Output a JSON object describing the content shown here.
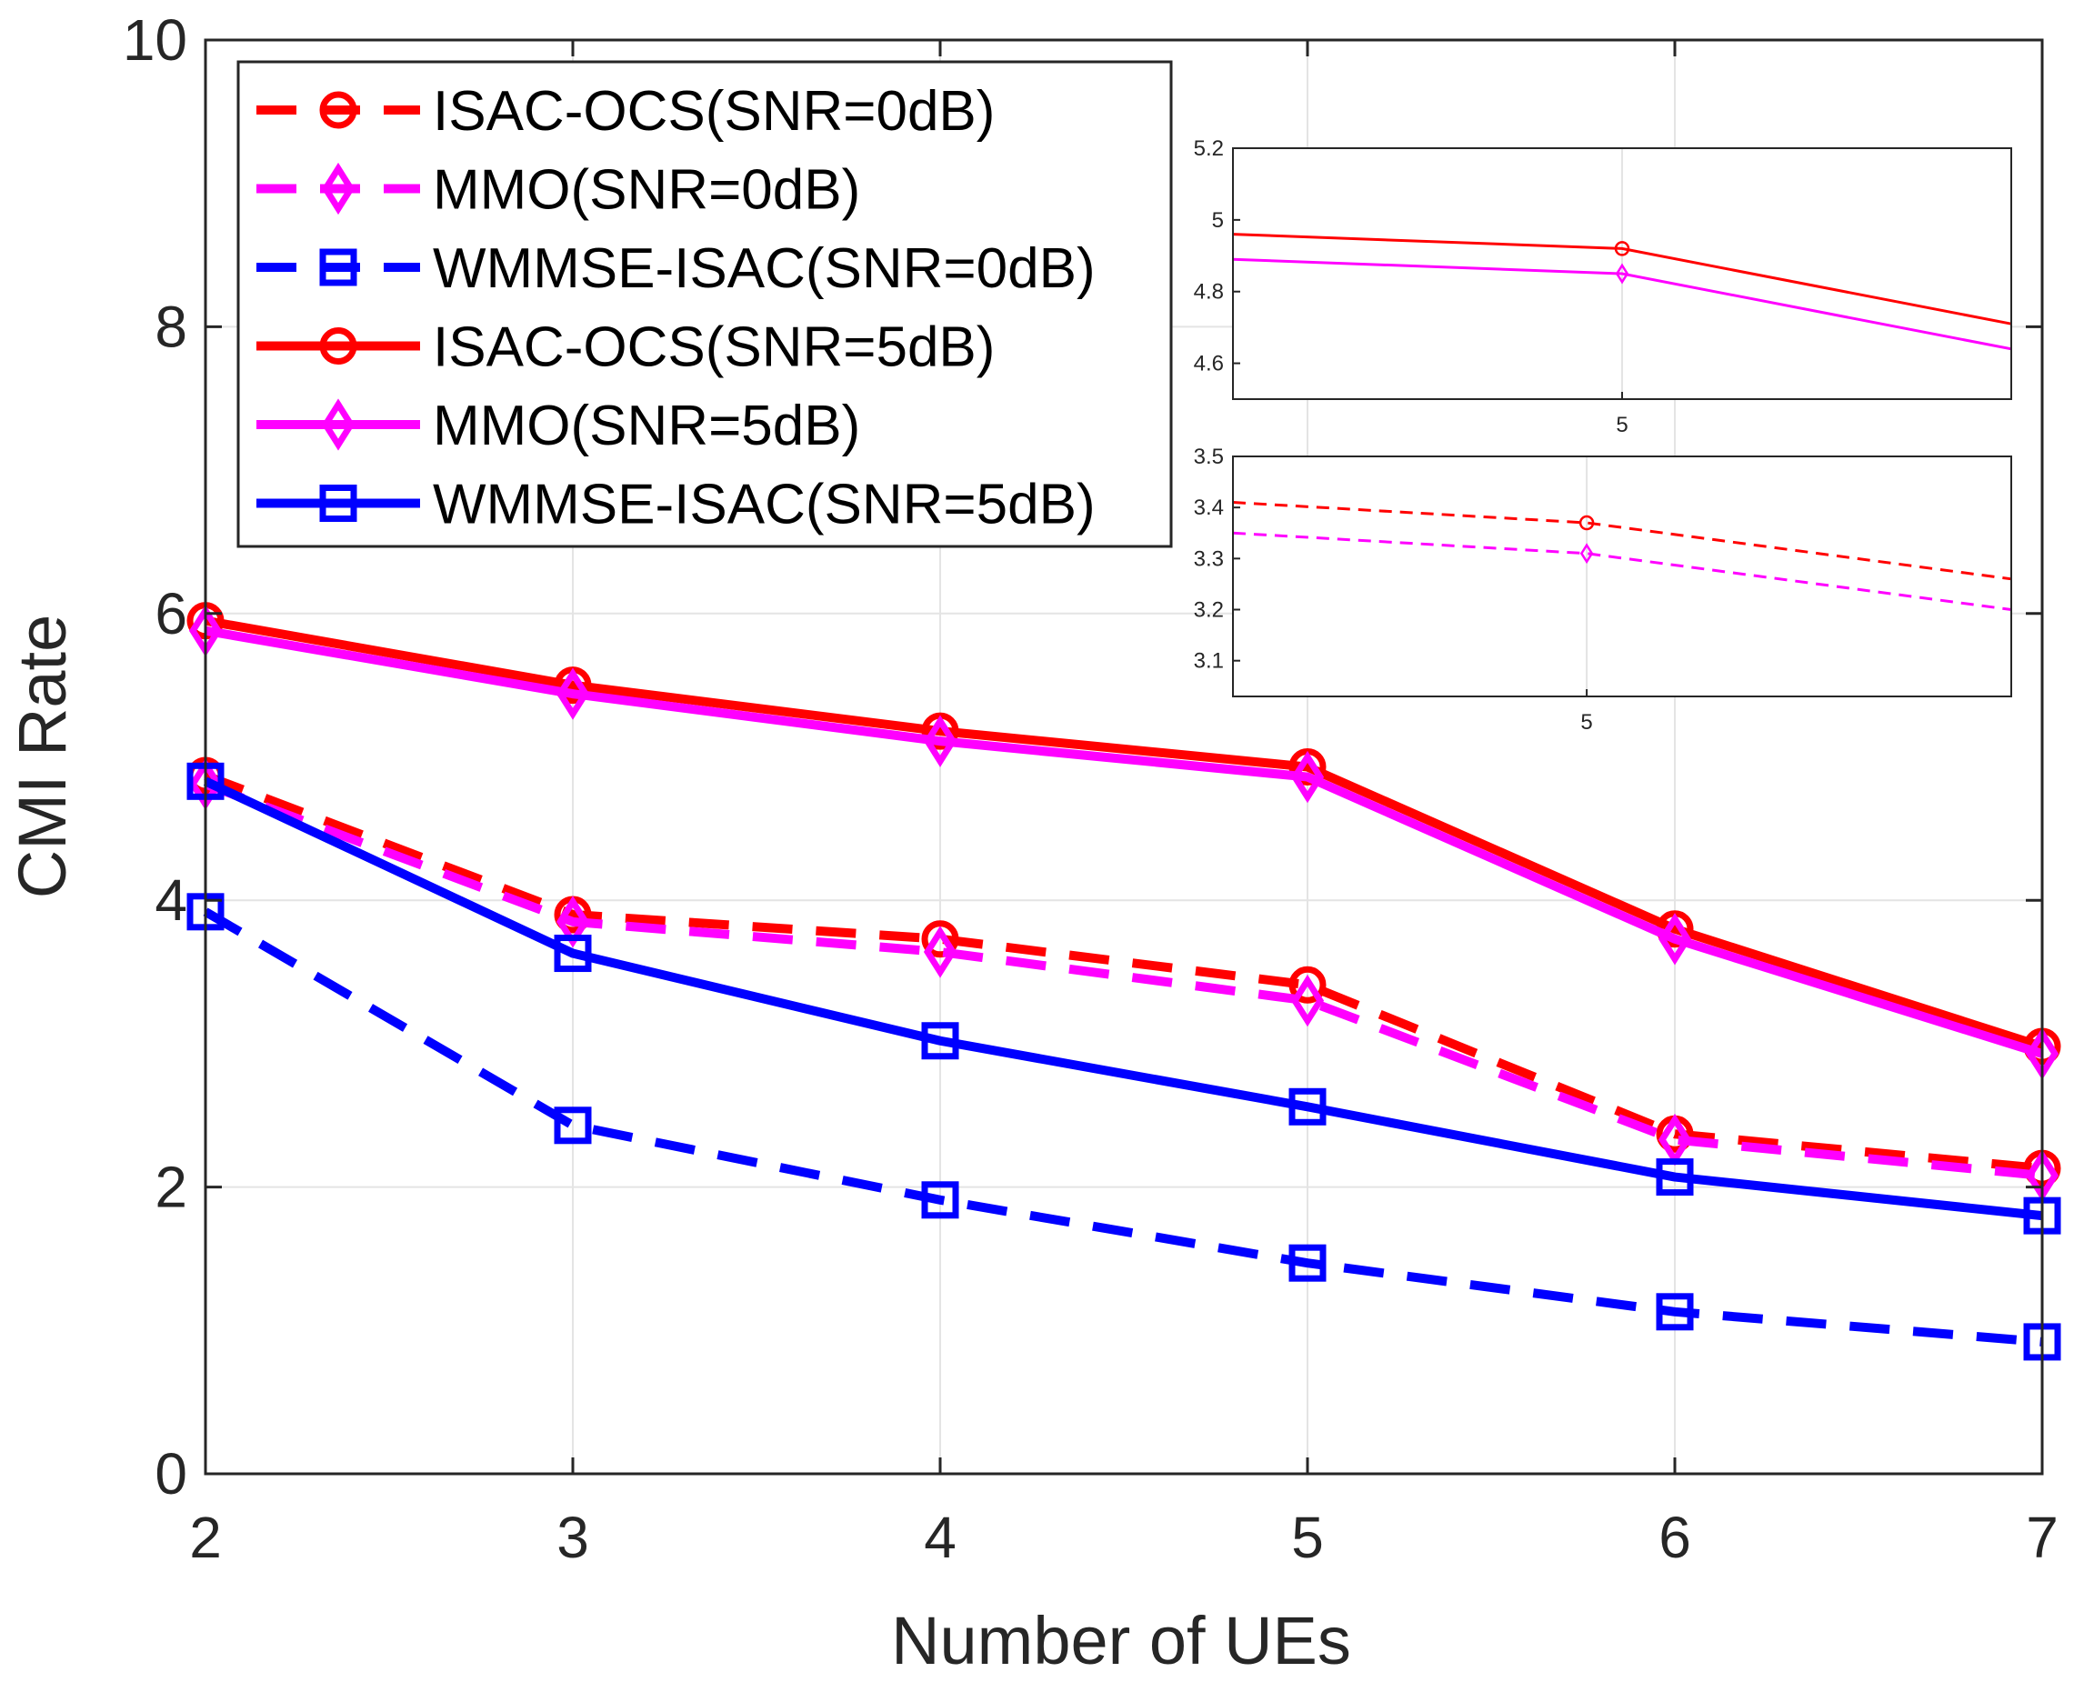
{
  "chart_data": {
    "type": "line",
    "xlabel": "Number of UEs",
    "ylabel": "CMI Rate",
    "xlim": [
      2,
      7
    ],
    "ylim": [
      0,
      10
    ],
    "xticks": [
      2,
      3,
      4,
      5,
      6,
      7
    ],
    "yticks": [
      0,
      2,
      4,
      6,
      8,
      10
    ],
    "grid": true,
    "legend_position": "top-left",
    "x": [
      2,
      3,
      4,
      5,
      6,
      7
    ],
    "series": [
      {
        "name": "ISAC-OCS(SNR=0dB)",
        "values": [
          4.87,
          3.9,
          3.73,
          3.41,
          2.37,
          2.13
        ],
        "color": "#ff0000",
        "linestyle": "dashed",
        "marker": "circle"
      },
      {
        "name": "MMO(SNR=0dB)",
        "values": [
          4.81,
          3.85,
          3.64,
          3.3,
          2.33,
          2.08
        ],
        "color": "#ff00ff",
        "linestyle": "dashed",
        "marker": "diamond"
      },
      {
        "name": "WMMSE-ISAC(SNR=0dB)",
        "values": [
          3.92,
          2.43,
          1.91,
          1.47,
          1.13,
          0.92
        ],
        "color": "#0000ff",
        "linestyle": "dashed",
        "marker": "square"
      },
      {
        "name": "ISAC-OCS(SNR=5dB)",
        "values": [
          5.95,
          5.5,
          5.18,
          4.93,
          3.8,
          2.98
        ],
        "color": "#ff0000",
        "linestyle": "solid",
        "marker": "circle"
      },
      {
        "name": "MMO(SNR=5dB)",
        "values": [
          5.88,
          5.44,
          5.11,
          4.86,
          3.73,
          2.93
        ],
        "color": "#ff00ff",
        "linestyle": "solid",
        "marker": "diamond"
      },
      {
        "name": "WMMSE-ISAC(SNR=5dB)",
        "values": [
          4.83,
          3.63,
          3.02,
          2.56,
          2.07,
          1.8
        ],
        "color": "#0000ff",
        "linestyle": "solid",
        "marker": "square"
      }
    ],
    "insets": [
      {
        "name": "inset-top",
        "xlim": [
          4.2,
          5.8
        ],
        "ylim": [
          4.5,
          5.2
        ],
        "xticks": [
          5
        ],
        "yticks": [
          4.6,
          4.8,
          5,
          5.2
        ],
        "series": [
          {
            "name": "ISAC-OCS(SNR=5dB)",
            "x": [
              4.2,
              5,
              5.8
            ],
            "values": [
              4.96,
              4.92,
              4.71
            ],
            "color": "#ff0000",
            "linestyle": "solid",
            "marker": "circle",
            "marker_at": [
              5
            ]
          },
          {
            "name": "MMO(SNR=5dB)",
            "x": [
              4.2,
              5,
              5.8
            ],
            "values": [
              4.89,
              4.85,
              4.64
            ],
            "color": "#ff00ff",
            "linestyle": "solid",
            "marker": "diamond",
            "marker_at": [
              5
            ]
          }
        ]
      },
      {
        "name": "inset-bottom",
        "xlim": [
          4.5,
          5.6
        ],
        "ylim": [
          3.03,
          3.5
        ],
        "xticks": [
          5
        ],
        "yticks": [
          3.1,
          3.2,
          3.3,
          3.4,
          3.5
        ],
        "series": [
          {
            "name": "ISAC-OCS(SNR=0dB)",
            "x": [
              4.5,
              5,
              5.6
            ],
            "values": [
              3.41,
              3.37,
              3.26
            ],
            "color": "#ff0000",
            "linestyle": "dashed",
            "marker": "circle",
            "marker_at": [
              5
            ]
          },
          {
            "name": "MMO(SNR=0dB)",
            "x": [
              4.5,
              5,
              5.6
            ],
            "values": [
              3.35,
              3.31,
              3.2
            ],
            "color": "#ff00ff",
            "linestyle": "dashed",
            "marker": "diamond",
            "marker_at": [
              5
            ]
          }
        ]
      }
    ]
  }
}
